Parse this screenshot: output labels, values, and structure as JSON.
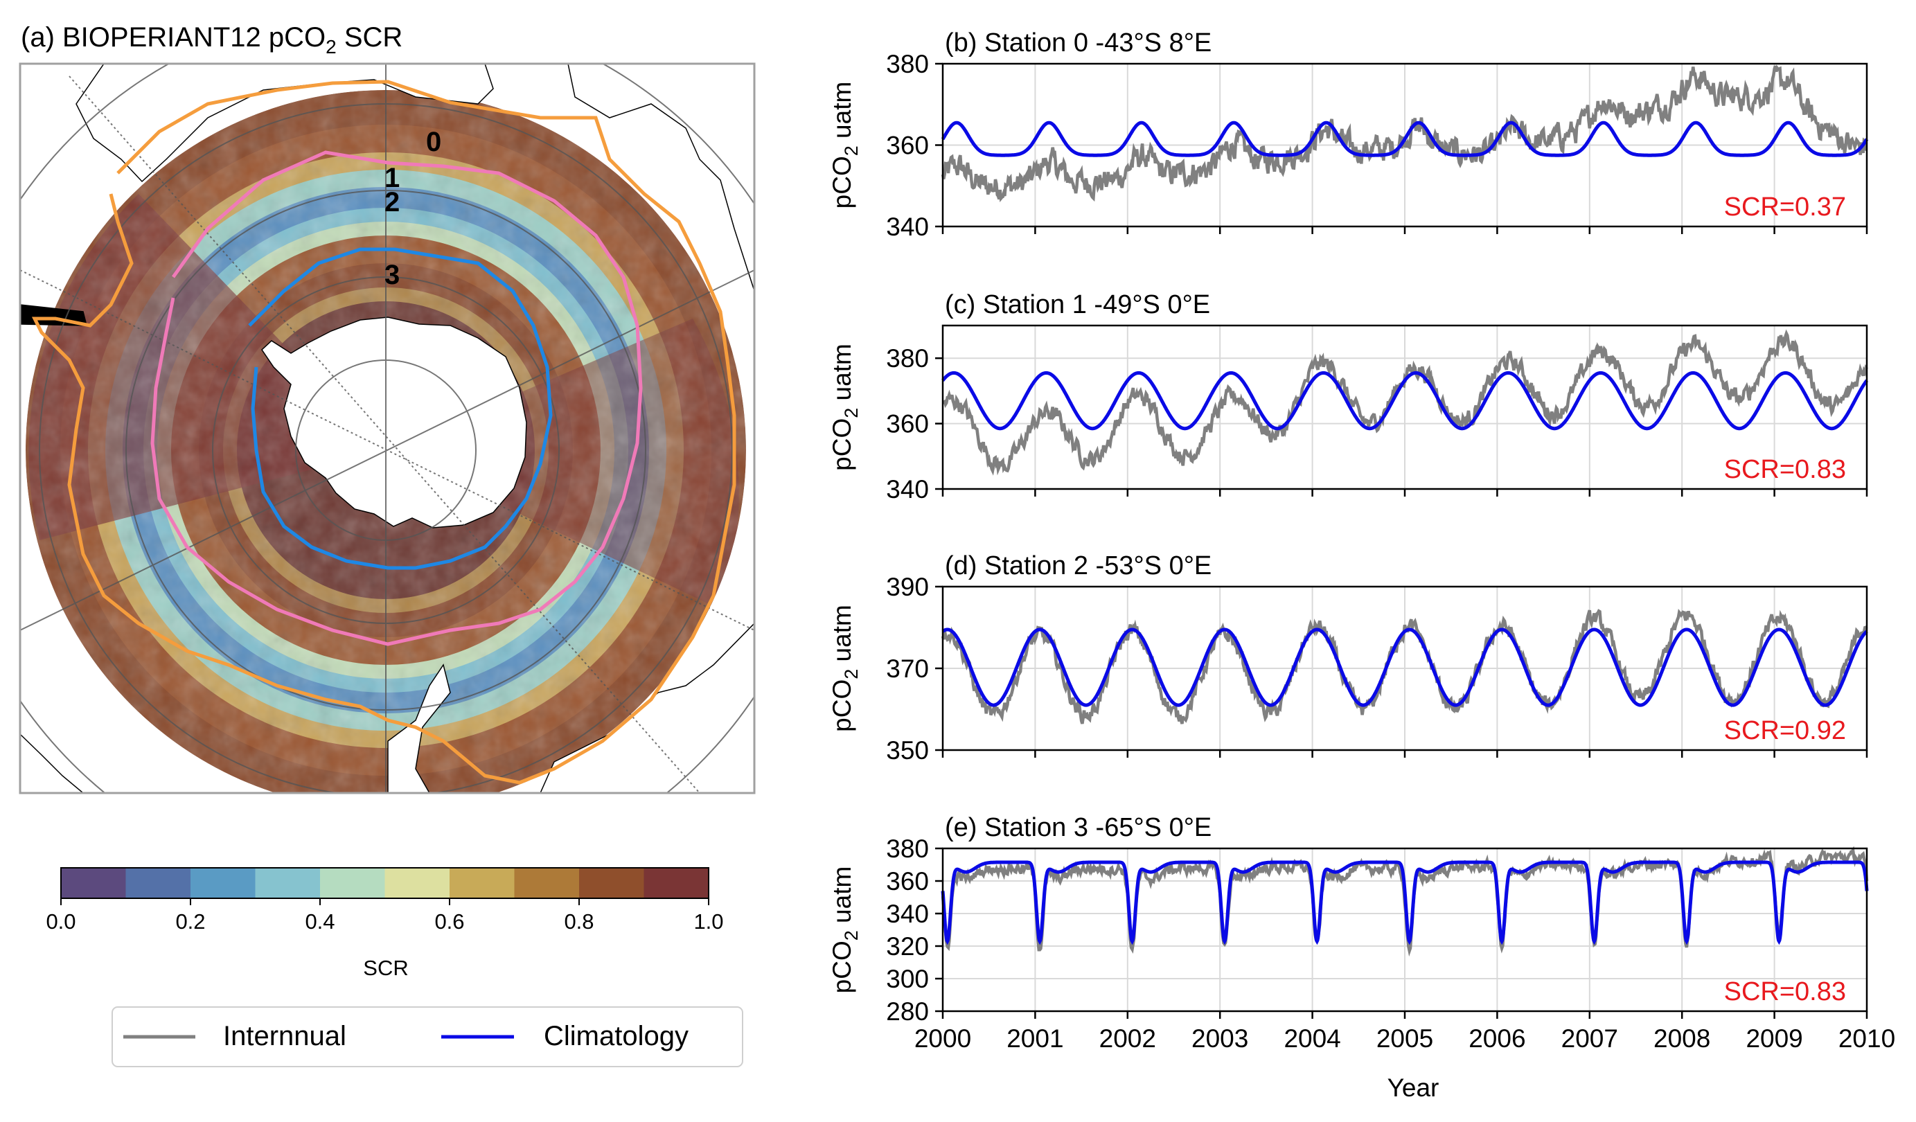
{
  "map": {
    "title_pre": "(a) BIOPERIANT12 pCO",
    "title_sub": "2",
    "title_post": " SCR",
    "station_labels": [
      "0",
      "1",
      "2",
      "3"
    ],
    "colorbar": {
      "label": "SCR",
      "ticks": [
        "0.0",
        "0.2",
        "0.4",
        "0.6",
        "0.8",
        "1.0"
      ],
      "colors": [
        "#5c4a7e",
        "#5471a8",
        "#5a9bc4",
        "#86c3cf",
        "#b5dcc0",
        "#dde0a0",
        "#c8aa58",
        "#ad7a38",
        "#8f4f2c",
        "#7a3535"
      ]
    },
    "front_colors": {
      "outer": "#f59d3d",
      "middle": "#f07ab8",
      "inner": "#1e88e5"
    }
  },
  "legend": {
    "items": [
      {
        "label": "Internnual",
        "color": "#808080"
      },
      {
        "label": "Climatology",
        "color": "#0a0ae6"
      }
    ]
  },
  "colors": {
    "interannual": "#808080",
    "climatology": "#0a0ae6",
    "scr_text": "#e8191e"
  },
  "xaxis": {
    "label": "Year",
    "ticks": [
      "2000",
      "2001",
      "2002",
      "2003",
      "2004",
      "2005",
      "2006",
      "2007",
      "2008",
      "2009",
      "2010"
    ]
  },
  "chart_data": [
    {
      "type": "line",
      "title": "(b) Station 0 -43°S 8°E",
      "ylabel_pre": "pCO",
      "ylabel_sub": "2",
      "ylabel_post": " uatm",
      "ylim": [
        340,
        380
      ],
      "yticks": [
        "340",
        "360",
        "380"
      ],
      "scr": "SCR=0.37",
      "series": [
        {
          "name": "Internnual",
          "x": [
            2000,
            2001,
            2002,
            2003,
            2004,
            2005,
            2006,
            2007,
            2008,
            2009,
            2010
          ],
          "values": [
            352,
            353,
            354,
            357,
            361,
            362,
            360,
            367,
            374,
            375,
            360
          ]
        },
        {
          "name": "Climatology",
          "clim": {
            "min": 357.5,
            "max": 365.5,
            "peak": 0.15,
            "width": 0.2,
            "type": "bump"
          }
        }
      ]
    },
    {
      "type": "line",
      "title": "(c) Station 1 -49°S 0°E",
      "ylabel_pre": "pCO",
      "ylabel_sub": "2",
      "ylabel_post": " uatm",
      "ylim": [
        340,
        390
      ],
      "yticks": [
        "340",
        "360",
        "380"
      ],
      "scr": "SCR=0.83",
      "series": [
        {
          "name": "Internnual",
          "x": [
            2000,
            2001,
            2002,
            2003,
            2004,
            2005,
            2006,
            2007,
            2008,
            2009,
            2010
          ],
          "values": [
            359,
            354,
            360,
            358,
            370,
            368,
            370,
            373,
            375,
            377,
            372
          ]
        },
        {
          "name": "Climatology",
          "clim": {
            "min": 358.5,
            "max": 375.5,
            "peak": 0.12,
            "type": "cos"
          }
        }
      ]
    },
    {
      "type": "line",
      "title": "(d) Station 2 -53°S 0°E",
      "ylabel_pre": "pCO",
      "ylabel_sub": "2",
      "ylabel_post": " uatm",
      "ylim": [
        350,
        390
      ],
      "yticks": [
        "350",
        "370",
        "390"
      ],
      "scr": "SCR=0.92",
      "series": [
        {
          "name": "Internnual",
          "x": [
            2000,
            2001,
            2002,
            2003,
            2004,
            2005,
            2006,
            2007,
            2008,
            2009,
            2010
          ],
          "values": [
            369,
            368,
            369,
            368,
            370,
            370,
            370,
            372,
            373,
            372,
            372
          ]
        },
        {
          "name": "Climatology",
          "clim": {
            "min": 361,
            "max": 379.5,
            "peak": 0.05,
            "type": "cos"
          }
        }
      ]
    },
    {
      "type": "line",
      "title": "(e) Station 3 -65°S 0°E",
      "ylabel_pre": "pCO",
      "ylabel_sub": "2",
      "ylabel_post": " uatm",
      "ylim": [
        280,
        380
      ],
      "yticks": [
        "280",
        "300",
        "320",
        "340",
        "360",
        "380"
      ],
      "scr": "SCR=0.83",
      "series": [
        {
          "name": "Internnual",
          "x": [
            2000,
            2001,
            2002,
            2003,
            2004,
            2005,
            2006,
            2007,
            2008,
            2009,
            2010
          ],
          "values": [
            355,
            356,
            355,
            356,
            357,
            355,
            358,
            359,
            360,
            366,
            368
          ]
        },
        {
          "name": "Climatology",
          "clim": {
            "min": 323,
            "max": 371.5,
            "dip": 0.05,
            "type": "dip"
          }
        }
      ]
    }
  ]
}
